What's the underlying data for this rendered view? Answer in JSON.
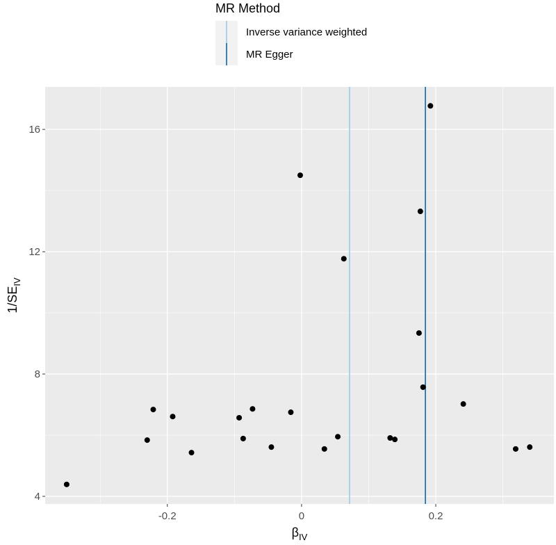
{
  "chart_data": {
    "type": "scatter",
    "legend_title": "MR Method",
    "xlabel": "β",
    "xlabel_subscript": "IV",
    "ylabel": "1/SE",
    "ylabel_subscript": "IV",
    "x": [
      -0.35,
      -0.23,
      -0.221,
      -0.192,
      -0.164,
      -0.093,
      -0.087,
      -0.073,
      -0.045,
      -0.016,
      -0.002,
      0.034,
      0.054,
      0.063,
      0.132,
      0.139,
      0.175,
      0.177,
      0.181,
      0.192,
      0.241,
      0.319,
      0.34
    ],
    "values": [
      4.39,
      5.84,
      6.84,
      6.61,
      5.43,
      6.57,
      5.89,
      6.86,
      5.61,
      6.75,
      14.5,
      5.55,
      5.95,
      11.77,
      5.91,
      5.86,
      9.34,
      13.32,
      7.57,
      16.77,
      7.02,
      5.55,
      5.61
    ],
    "color": "#000000",
    "reference_lines": [
      {
        "name": "Inverse variance weighted",
        "color": "#a6cee3",
        "value": 0.0715
      },
      {
        "name": "MR Egger",
        "color": "#1f78b4",
        "value": 0.1845
      }
    ],
    "xlim": [
      -0.382,
      0.376
    ],
    "ylim": [
      3.75,
      17.39
    ],
    "xticks": [
      -0.2,
      0.0,
      0.2
    ],
    "yticks": [
      4,
      8,
      12,
      16
    ],
    "x_minor_ticks": [
      -0.3,
      -0.1,
      0.1,
      0.3
    ],
    "y_minor_ticks": [
      6,
      10,
      14
    ],
    "grid": true,
    "legend_position": "top"
  }
}
